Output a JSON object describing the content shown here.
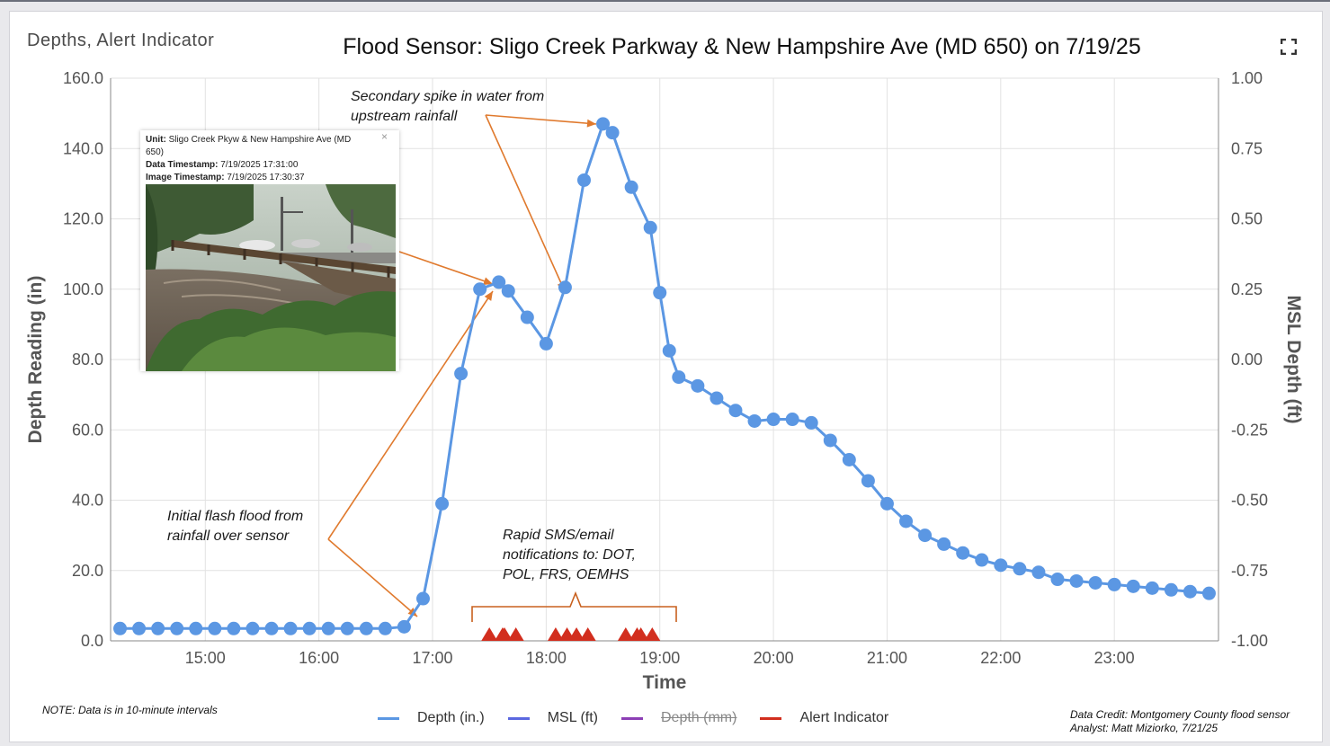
{
  "widget_title": "Depths, Alert Indicator",
  "expand_icon": "fullscreen-icon",
  "chart_data": {
    "type": "line",
    "title": "Flood Sensor: Sligo Creek Parkway & New Hampshire Ave (MD 650) on 7/19/25",
    "xlabel": "Time",
    "ylabel": "Depth Reading (in)",
    "y2label": "MSL Depth (ft)",
    "ylim": [
      0,
      160
    ],
    "y2lim": [
      -1.0,
      1.0
    ],
    "xlim": [
      "14:10",
      "23:55"
    ],
    "x_ticks": [
      "15:00",
      "16:00",
      "17:00",
      "18:00",
      "19:00",
      "20:00",
      "21:00",
      "22:00",
      "23:00"
    ],
    "y_ticks": [
      "0.0",
      "20.0",
      "40.0",
      "60.0",
      "80.0",
      "100.0",
      "120.0",
      "140.0",
      "160.0"
    ],
    "y2_ticks": [
      "-1.00",
      "-0.75",
      "-0.50",
      "-0.25",
      "0.00",
      "0.25",
      "0.50",
      "0.75",
      "1.00"
    ],
    "grid": true,
    "legend_position": "bottom",
    "series": [
      {
        "name": "Depth (in.)",
        "color": "#5b97e3",
        "x": [
          "14:15",
          "14:25",
          "14:35",
          "14:45",
          "14:55",
          "15:05",
          "15:15",
          "15:25",
          "15:35",
          "15:45",
          "15:55",
          "16:05",
          "16:15",
          "16:25",
          "16:35",
          "16:45",
          "16:55",
          "17:05",
          "17:15",
          "17:25",
          "17:35",
          "17:40",
          "17:50",
          "18:00",
          "18:10",
          "18:20",
          "18:30",
          "18:35",
          "18:45",
          "18:55",
          "19:00",
          "19:05",
          "19:10",
          "19:20",
          "19:30",
          "19:40",
          "19:50",
          "20:00",
          "20:10",
          "20:20",
          "20:30",
          "20:40",
          "20:50",
          "21:00",
          "21:10",
          "21:20",
          "21:30",
          "21:40",
          "21:50",
          "22:00",
          "22:10",
          "22:20",
          "22:30",
          "22:40",
          "22:50",
          "23:00",
          "23:10",
          "23:20",
          "23:30",
          "23:40",
          "23:50"
        ],
        "values": [
          3.5,
          3.5,
          3.5,
          3.5,
          3.5,
          3.5,
          3.5,
          3.5,
          3.5,
          3.5,
          3.5,
          3.5,
          3.5,
          3.5,
          3.5,
          4.0,
          12.0,
          39.0,
          76.0,
          100.0,
          102.0,
          99.5,
          92.0,
          84.5,
          100.5,
          131.0,
          147.0,
          144.5,
          129.0,
          117.5,
          99.0,
          82.5,
          75.0,
          72.5,
          69.0,
          65.5,
          62.5,
          63.0,
          63.0,
          62.0,
          57.0,
          51.5,
          45.5,
          39.0,
          34.0,
          30.0,
          27.5,
          25.0,
          23.0,
          21.5,
          20.5,
          19.5,
          17.5,
          17.0,
          16.5,
          16.0,
          15.5,
          15.0,
          14.5,
          14.0,
          13.5
        ]
      },
      {
        "name": "MSL (ft)",
        "color": "#5b68e0",
        "values": []
      },
      {
        "name": "Depth (mm)",
        "color": "#8c3fb5",
        "values": [],
        "hidden": true
      },
      {
        "name": "Alert Indicator",
        "color": "#d22e1e",
        "marker": "triangle",
        "x": [
          "17:30",
          "17:37",
          "17:38",
          "17:44",
          "18:05",
          "18:11",
          "18:16",
          "18:22",
          "18:42",
          "18:48",
          "18:50",
          "18:56"
        ],
        "values": [
          0,
          0,
          0,
          0,
          0,
          0,
          0,
          0,
          0,
          0,
          0,
          0
        ]
      }
    ]
  },
  "annotations": {
    "secondary_spike": "Secondary spike in water from\nupstream rainfall",
    "initial_flash": "Initial flash flood from\nrainfall over sensor",
    "sms": "Rapid SMS/email\nnotifications to: DOT,\nPOL, FRS, OEMHS"
  },
  "camera_popup": {
    "unit_label": "Unit:",
    "unit_value": "Sligo Creek Pkyw & New Hampshire Ave (MD 650)",
    "data_ts_label": "Data Timestamp:",
    "data_ts_value": "7/19/2025 17:31:00",
    "image_ts_label": "Image Timestamp:",
    "image_ts_value": "7/19/2025 17:30:37",
    "close_glyph": "×"
  },
  "note": "NOTE: Data is in 10-minute intervals",
  "credit_line1": "Data Credit: Montgomery County flood sensor",
  "credit_line2": "Analyst: Matt Miziorko, 7/21/25"
}
